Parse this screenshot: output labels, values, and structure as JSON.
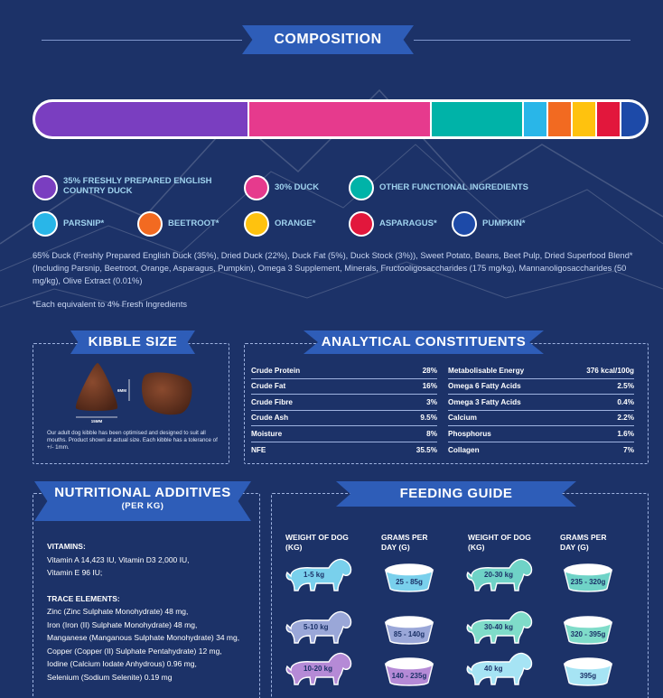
{
  "composition": {
    "title": "COMPOSITION",
    "segments": [
      {
        "color": "#7a3ec0",
        "share": 35
      },
      {
        "color": "#e63a8d",
        "share": 30
      },
      {
        "color": "#00b3a8",
        "share": 15
      },
      {
        "color": "#29b6e8",
        "share": 4
      },
      {
        "color": "#f26a21",
        "share": 4
      },
      {
        "color": "#ffc20e",
        "share": 4
      },
      {
        "color": "#e2173c",
        "share": 4
      },
      {
        "color": "#1d4aa8",
        "share": 4
      }
    ],
    "legend": [
      {
        "label": "35% FRESHLY PREPARED ENGLISH COUNTRY DUCK",
        "color": "#7a3ec0"
      },
      {
        "label": "30% DUCK",
        "color": "#e63a8d"
      },
      {
        "label": "OTHER FUNCTIONAL INGREDIENTS",
        "color": "#00b3a8"
      },
      {
        "label": "PARSNIP*",
        "color": "#29b6e8"
      },
      {
        "label": "BEETROOT*",
        "color": "#f26a21"
      },
      {
        "label": "ORANGE*",
        "color": "#ffc20e"
      },
      {
        "label": "ASPARAGUS*",
        "color": "#e2173c"
      },
      {
        "label": "PUMPKIN*",
        "color": "#1d4aa8"
      }
    ],
    "text": "65% Duck (Freshly Prepared English Duck (35%), Dried Duck (22%), Duck Fat (5%), Duck Stock (3%)), Sweet Potato, Beans, Beet Pulp, Dried Superfood Blend* (Including Parsnip, Beetroot, Orange, Asparagus, Pumpkin), Omega 3 Supplement, Minerals, Fructooligosaccharides (175 mg/kg), Mannanoligosaccharides (50 mg/kg), Olive Extract (0.01%)",
    "note": "*Each equivalent to 4% Fresh Ingredients"
  },
  "kibble": {
    "title": "KIBBLE SIZE",
    "dim_h": "15MM",
    "dim_v": "6MM",
    "note": "Our adult dog kibble has been optimised and designed to suit all mouths. Product shown at actual size. Each kibble has a tolerance of +/- 1mm."
  },
  "analytical": {
    "title": "ANALYTICAL CONSTITUENTS",
    "left": [
      {
        "name": "Crude Protein",
        "value": "28%"
      },
      {
        "name": "Crude Fat",
        "value": "16%"
      },
      {
        "name": "Crude Fibre",
        "value": "3%"
      },
      {
        "name": "Crude Ash",
        "value": "9.5%"
      },
      {
        "name": "Moisture",
        "value": "8%"
      },
      {
        "name": "NFE",
        "value": "35.5%"
      }
    ],
    "right": [
      {
        "name": "Metabolisable Energy",
        "value": "376 kcal/100g"
      },
      {
        "name": "Omega 6 Fatty Acids",
        "value": "2.5%"
      },
      {
        "name": "Omega 3 Fatty Acids",
        "value": "0.4%"
      },
      {
        "name": "Calcium",
        "value": "2.2%"
      },
      {
        "name": "Phosphorus",
        "value": "1.6%"
      },
      {
        "name": "Collagen",
        "value": "7%"
      }
    ]
  },
  "nutritional": {
    "title": "NUTRITIONAL ADDITIVES",
    "subtitle": "(PER KG)",
    "vitamins_head": "VITAMINS:",
    "vitamins": [
      "Vitamin A 14,423 IU, Vitamin D3 2,000 IU,",
      "Vitamin E 96 IU;"
    ],
    "trace_head": "TRACE ELEMENTS:",
    "trace": [
      "Zinc (Zinc Sulphate Monohydrate) 48 mg,",
      "Iron (Iron (II) Sulphate Monohydrate) 48 mg,",
      "Manganese (Manganous Sulphate Monohydrate) 34 mg,",
      "Copper (Copper (II) Sulphate Pentahydrate) 12 mg,",
      "Iodine (Calcium Iodate Anhydrous) 0.96 mg,",
      "Selenium (Sodium Selenite) 0.19 mg"
    ]
  },
  "feeding": {
    "title": "FEEDING GUIDE",
    "col_weight": "WEIGHT OF DOG (KG)",
    "col_grams": "GRAMS PER DAY (G)",
    "left": [
      {
        "weight": "1-5 kg",
        "grams": "25 - 85g",
        "color": "#79d0ec"
      },
      {
        "weight": "5-10 kg",
        "grams": "85 - 140g",
        "color": "#9aa7d8"
      },
      {
        "weight": "10-20 kg",
        "grams": "140 - 235g",
        "color": "#b58ad6"
      }
    ],
    "right": [
      {
        "weight": "20-30 kg",
        "grams": "235 - 320g",
        "color": "#6fd3c7"
      },
      {
        "weight": "30-40 kg",
        "grams": "320 - 395g",
        "color": "#7fdcc9"
      },
      {
        "weight": "40 kg",
        "grams": "395g",
        "color": "#a6e4f4"
      }
    ]
  }
}
